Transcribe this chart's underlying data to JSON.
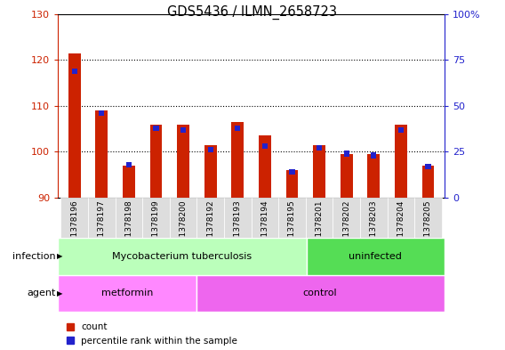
{
  "title": "GDS5436 / ILMN_2658723",
  "samples": [
    "GSM1378196",
    "GSM1378197",
    "GSM1378198",
    "GSM1378199",
    "GSM1378200",
    "GSM1378192",
    "GSM1378193",
    "GSM1378194",
    "GSM1378195",
    "GSM1378201",
    "GSM1378202",
    "GSM1378203",
    "GSM1378204",
    "GSM1378205"
  ],
  "red_values": [
    121.5,
    109.0,
    97.0,
    106.0,
    106.0,
    101.5,
    106.5,
    103.5,
    96.0,
    101.5,
    99.5,
    99.5,
    106.0,
    97.0
  ],
  "blue_values": [
    69,
    46,
    18,
    38,
    37,
    26,
    38,
    28,
    14,
    27,
    24,
    23,
    37,
    17
  ],
  "ymin": 90,
  "ymax": 130,
  "y_ticks": [
    90,
    100,
    110,
    120,
    130
  ],
  "y2min": 0,
  "y2max": 100,
  "y2_ticks": [
    0,
    25,
    50,
    75,
    100
  ],
  "bar_color": "#cc2200",
  "blue_color": "#2222cc",
  "infection_groups": [
    {
      "label": "Mycobacterium tuberculosis",
      "start": 0,
      "end": 9,
      "color": "#bbffbb"
    },
    {
      "label": "uninfected",
      "start": 9,
      "end": 14,
      "color": "#55dd55"
    }
  ],
  "agent_groups": [
    {
      "label": "metformin",
      "start": 0,
      "end": 5,
      "color": "#ff88ff"
    },
    {
      "label": "control",
      "start": 5,
      "end": 14,
      "color": "#ee66ee"
    }
  ],
  "infection_label": "infection",
  "agent_label": "agent",
  "legend_count": "count",
  "legend_percentile": "percentile rank within the sample",
  "bar_width": 0.45,
  "left_axis_color": "#cc2200",
  "right_axis_color": "#2222cc"
}
